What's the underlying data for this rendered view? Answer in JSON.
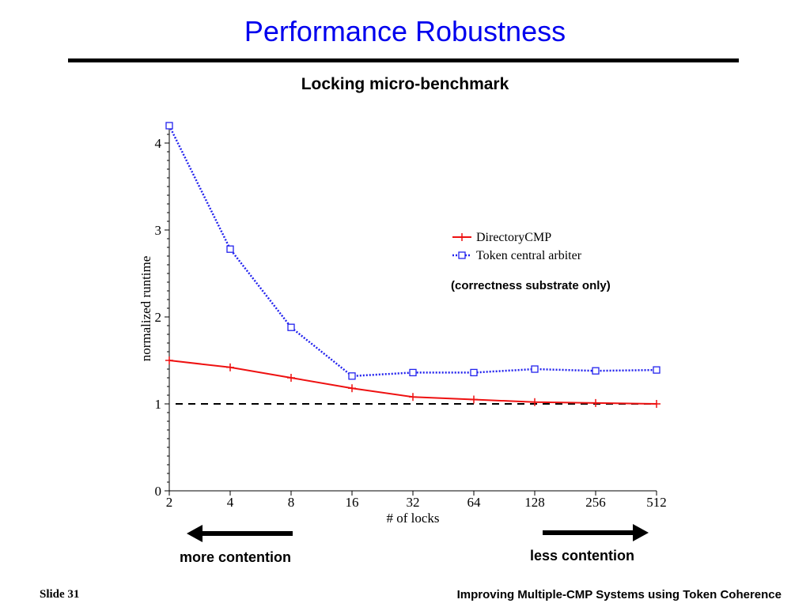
{
  "slide": {
    "title": "Performance Robustness",
    "footer_left": "Slide 31",
    "footer_right": "Improving Multiple-CMP Systems using Token Coherence"
  },
  "annotations": {
    "note": "(correctness substrate only)",
    "more_contention": "more contention",
    "less_contention": "less contention"
  },
  "chart_data": {
    "type": "line",
    "title": "Locking micro-benchmark",
    "xlabel": "# of locks",
    "ylabel": "normalized runtime",
    "x_scale": "log2",
    "categories": [
      "2",
      "4",
      "8",
      "16",
      "32",
      "64",
      "128",
      "256",
      "512"
    ],
    "x": [
      2,
      4,
      8,
      16,
      32,
      64,
      128,
      256,
      512
    ],
    "ylim": [
      0,
      4.2
    ],
    "yticks": [
      0,
      1,
      2,
      3,
      4
    ],
    "reference_line": {
      "y": 1,
      "style": "dashed",
      "color": "#000000"
    },
    "legend_position": "right",
    "series": [
      {
        "name": "DirectoryCMP",
        "color": "#ee1111",
        "marker": "plus",
        "line_style": "solid",
        "values": [
          1.5,
          1.42,
          1.3,
          1.18,
          1.08,
          1.05,
          1.02,
          1.01,
          1.0
        ]
      },
      {
        "name": "Token central arbiter",
        "color": "#2222ee",
        "marker": "square",
        "line_style": "dotted",
        "values": [
          4.2,
          2.78,
          1.88,
          1.32,
          1.36,
          1.36,
          1.4,
          1.38,
          1.39
        ]
      }
    ]
  }
}
